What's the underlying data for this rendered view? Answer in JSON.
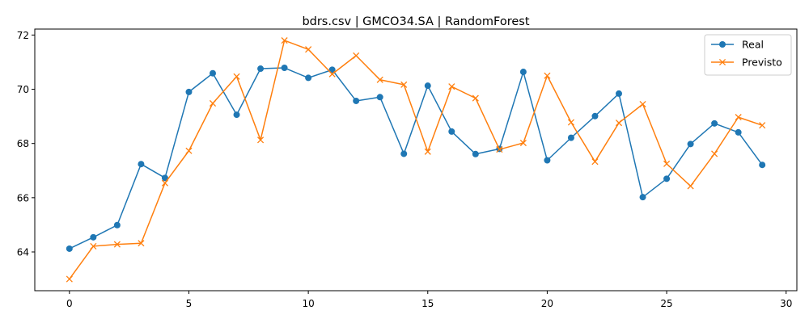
{
  "chart_data": {
    "type": "line",
    "title": "bdrs.csv | GMCO34.SA | RandomForest",
    "xlabel": "",
    "ylabel": "",
    "x": [
      0,
      1,
      2,
      3,
      4,
      5,
      6,
      7,
      8,
      9,
      10,
      11,
      12,
      13,
      14,
      15,
      16,
      17,
      18,
      19,
      20,
      21,
      22,
      23,
      24,
      25,
      26,
      27,
      28,
      29
    ],
    "xlim": [
      -1.45,
      30.45
    ],
    "ylim": [
      62.57,
      72.22
    ],
    "xticks": [
      0,
      5,
      10,
      15,
      20,
      25,
      30
    ],
    "yticks": [
      64,
      66,
      68,
      70,
      72
    ],
    "grid": false,
    "legend_position": "top-right",
    "series": [
      {
        "name": "Real",
        "color": "#1f77b4",
        "marker": "circle",
        "values": [
          64.12,
          64.54,
          64.99,
          67.24,
          66.73,
          69.9,
          70.59,
          69.06,
          70.76,
          70.79,
          70.42,
          70.72,
          69.57,
          69.71,
          67.62,
          70.13,
          68.44,
          67.61,
          67.8,
          70.64,
          67.38,
          68.21,
          69.01,
          69.84,
          66.02,
          66.7,
          67.98,
          68.74,
          68.41,
          67.21
        ]
      },
      {
        "name": "Previsto",
        "color": "#ff7f0e",
        "marker": "x",
        "values": [
          63.0,
          64.21,
          64.28,
          64.32,
          66.54,
          67.73,
          69.48,
          70.47,
          68.13,
          71.8,
          71.47,
          70.56,
          71.24,
          70.35,
          70.17,
          67.7,
          70.1,
          69.67,
          67.78,
          68.02,
          70.5,
          68.78,
          67.33,
          68.76,
          69.45,
          67.25,
          66.43,
          67.62,
          68.97,
          68.67
        ]
      }
    ]
  }
}
